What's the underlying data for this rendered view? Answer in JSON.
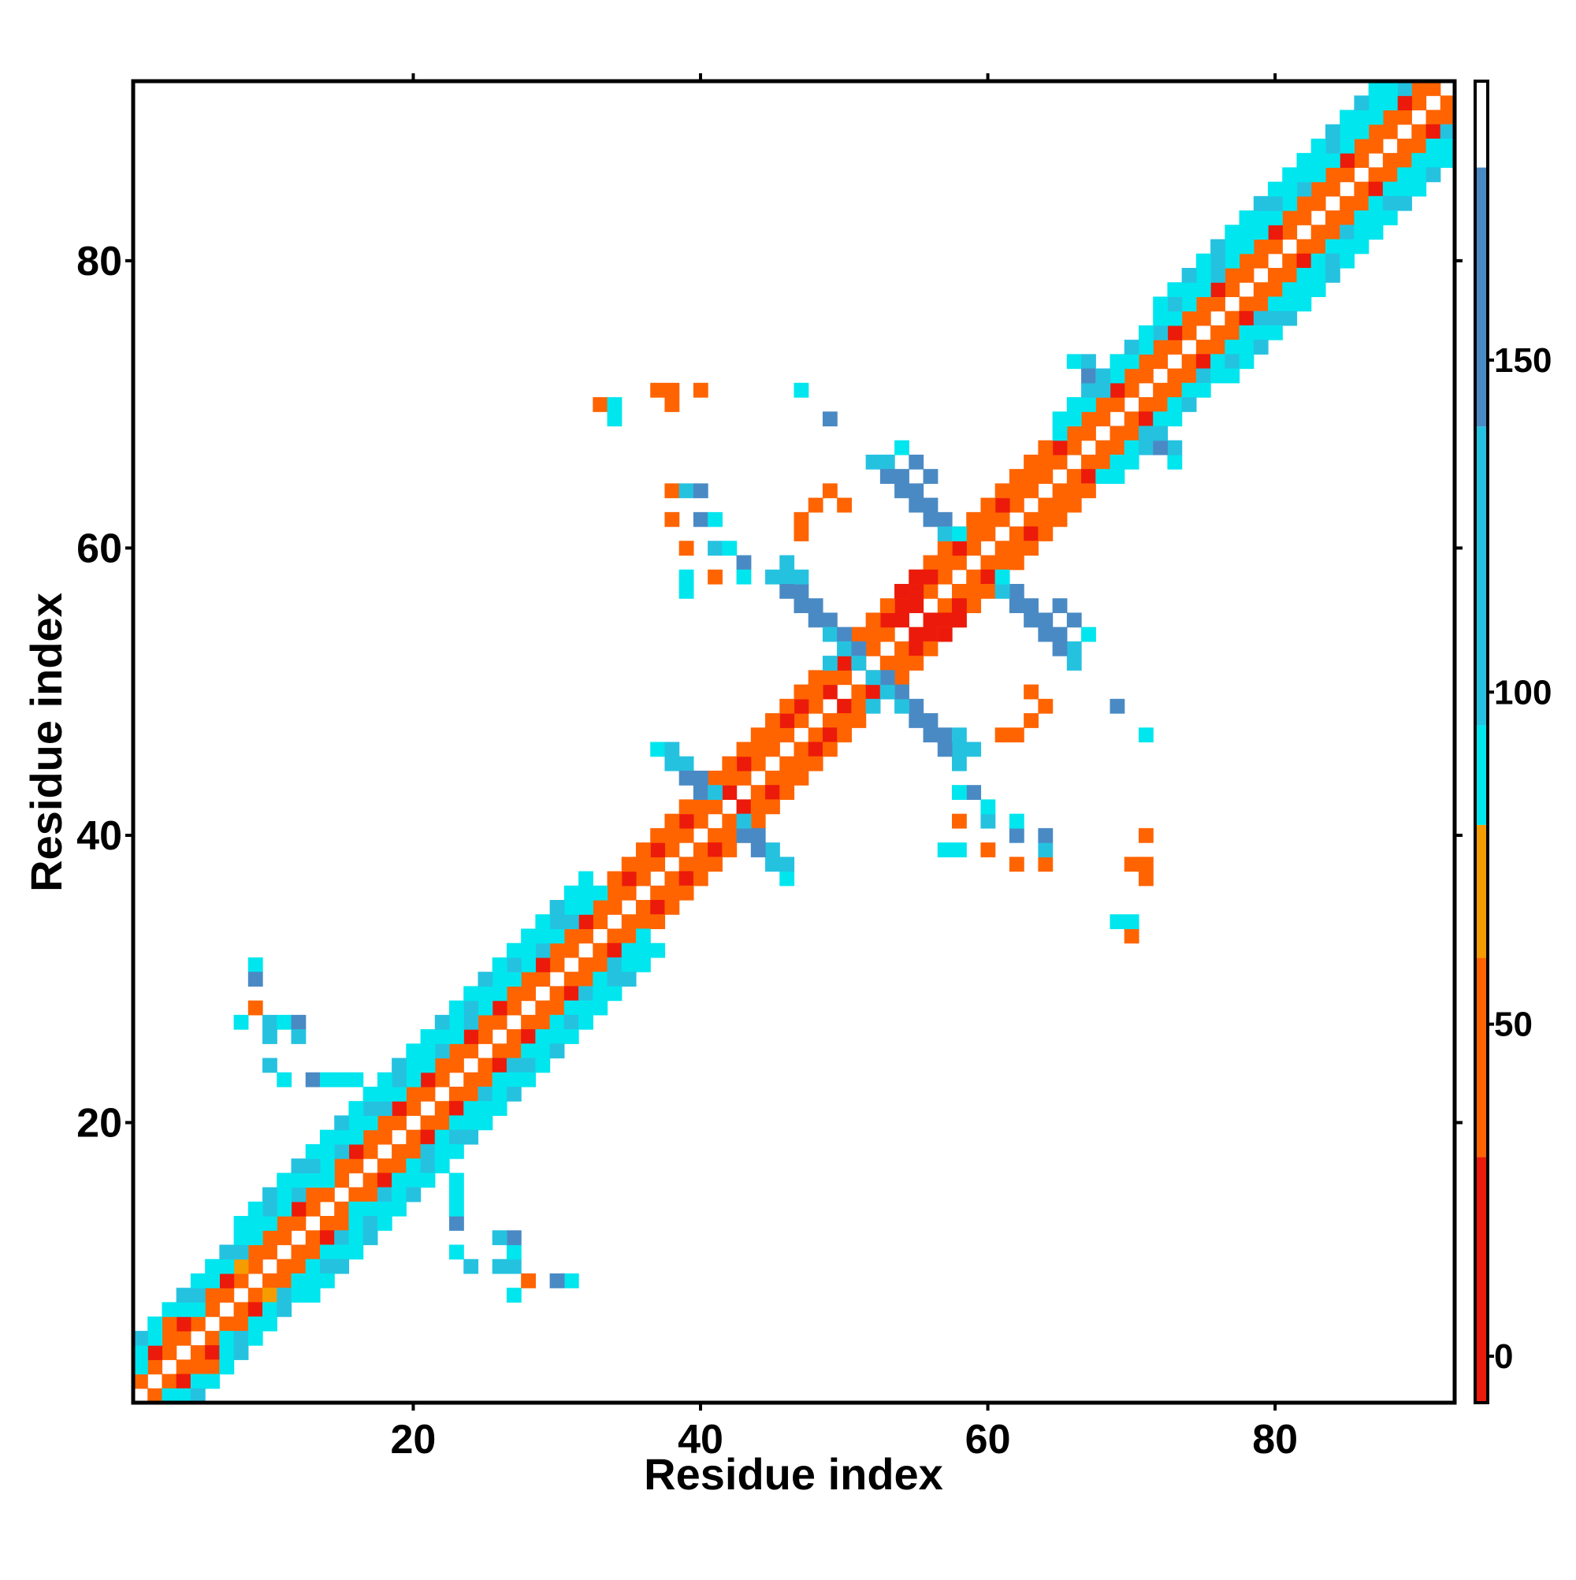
{
  "chart_data": {
    "type": "heatmap",
    "xlabel": "Residue index",
    "ylabel": "Residue index",
    "xlim": [
      0.5,
      92.5
    ],
    "ylim": [
      0.5,
      92.5
    ],
    "xticks": [
      20,
      40,
      60,
      80
    ],
    "yticks": [
      20,
      40,
      60,
      80
    ],
    "symmetric": true,
    "band": [
      {
        "offset": 1,
        "values": [
          40,
          38,
          42,
          36,
          60,
          40,
          38,
          45,
          40,
          36,
          42,
          40,
          55,
          38,
          40,
          42,
          36,
          40,
          44,
          38,
          40,
          42,
          38,
          40,
          36,
          42,
          40,
          38,
          44,
          40,
          38,
          42,
          36,
          40,
          38,
          42,
          40,
          44,
          38,
          40,
          42,
          20,
          38,
          40,
          42,
          40,
          38,
          44,
          20,
          40,
          42,
          38,
          36,
          15,
          20,
          40,
          42,
          38,
          40,
          36,
          44,
          40,
          38,
          42,
          40,
          36,
          40,
          42,
          38,
          44,
          40,
          36,
          42,
          40,
          38,
          40,
          44,
          38,
          42,
          40,
          36,
          40,
          42,
          38,
          40,
          44,
          38,
          40,
          42,
          38,
          40
        ]
      },
      {
        "offset": 2,
        "values": [
          90,
          20,
          40,
          25,
          85,
          40,
          30,
          70,
          42,
          38,
          45,
          30,
          40,
          92,
          38,
          25,
          40,
          42,
          30,
          40,
          25,
          40,
          38,
          30,
          42,
          25,
          40,
          38,
          30,
          42,
          40,
          25,
          38,
          42,
          30,
          40,
          20,
          38,
          25,
          40,
          15,
          40,
          20,
          38,
          42,
          25,
          15,
          40,
          38,
          20,
          42,
          38,
          10,
          12,
          15,
          40,
          42,
          20,
          38,
          40,
          25,
          42,
          38,
          40,
          30,
          42,
          38,
          40,
          25,
          42,
          38,
          40,
          30,
          42,
          38,
          25,
          40,
          42,
          38,
          30,
          40,
          42,
          38,
          40,
          25,
          42,
          38,
          40,
          30,
          42
        ]
      },
      {
        "offset": 3,
        "values": [
          95,
          88,
          40,
          92,
          100,
          90,
          95,
          110,
          92,
          88,
          95,
          100,
          90,
          92,
          110,
          95,
          88,
          100,
          92,
          90,
          95,
          110,
          92,
          100,
          90,
          88,
          95,
          92,
          100,
          90,
          110,
          95,
          92,
          40,
          42,
          38,
          45,
          40,
          42,
          38,
          40,
          42,
          45,
          38,
          40,
          42,
          40,
          38,
          120,
          110,
          42,
          40,
          38,
          45,
          40,
          42,
          38,
          40,
          44,
          40,
          42,
          38,
          40,
          45,
          92,
          95,
          88,
          100,
          92,
          90,
          95,
          110,
          92,
          88,
          95,
          100,
          92,
          90,
          95,
          88,
          92,
          100,
          95,
          90,
          92,
          88,
          95,
          90,
          100
        ]
      },
      {
        "offset": 4,
        "values": [
          100,
          92,
          95,
          110,
          92,
          88,
          100,
          95,
          92,
          110,
          95,
          90,
          100,
          92,
          88,
          95,
          110,
          92,
          100,
          95,
          90,
          92,
          95,
          100,
          88,
          92,
          110,
          95,
          92,
          100,
          95,
          92,
          null,
          null,
          null,
          null,
          null,
          null,
          null,
          null,
          null,
          null,
          null,
          null,
          null,
          null,
          null,
          null,
          null,
          null,
          null,
          null,
          null,
          null,
          null,
          null,
          null,
          null,
          null,
          null,
          null,
          null,
          null,
          null,
          92,
          95,
          100,
          88,
          92,
          110,
          95,
          92,
          100,
          90,
          95,
          110,
          92,
          88,
          95,
          100,
          92,
          95,
          90,
          100,
          92,
          95,
          88,
          92
        ]
      },
      {
        "offset": 5,
        "values": [
          null,
          null,
          null,
          null,
          null,
          null,
          null,
          92,
          95,
          100,
          92,
          110,
          95,
          92,
          100,
          95,
          88,
          92,
          100,
          95,
          92,
          110,
          95,
          92,
          100,
          95,
          92,
          90,
          95,
          100,
          92,
          95,
          null,
          null,
          null,
          null,
          null,
          null,
          null,
          null,
          null,
          null,
          null,
          null,
          null,
          null,
          null,
          null,
          null,
          null,
          null,
          null,
          null,
          null,
          null,
          null,
          null,
          null,
          null,
          null,
          null,
          null,
          null,
          null,
          null,
          null,
          null,
          null,
          null,
          null,
          null,
          92,
          95,
          100,
          92,
          110,
          95,
          92,
          100,
          95,
          92,
          88,
          95,
          100,
          92,
          110,
          95
        ]
      }
    ],
    "cells": {
      "x": [
        45,
        46,
        46,
        47,
        47,
        48,
        48,
        49,
        49,
        50,
        50,
        51,
        51,
        46,
        47,
        52,
        53,
        53,
        54,
        54,
        55,
        55,
        56,
        56,
        57,
        57,
        58,
        54,
        55,
        56,
        55,
        56,
        54,
        38,
        39,
        39,
        40,
        40,
        41,
        37,
        38,
        66,
        67,
        67,
        68,
        68,
        33,
        34,
        34,
        37,
        38,
        38,
        40,
        47,
        49,
        38,
        39,
        40,
        38,
        40,
        41,
        39,
        41,
        42,
        43,
        39,
        41,
        43,
        39,
        47,
        48,
        49,
        50,
        47,
        9,
        9,
        9,
        8,
        10,
        11,
        12,
        10,
        12,
        10,
        11,
        13,
        14,
        15,
        16
      ],
      "y": [
        58,
        58,
        57,
        57,
        56,
        56,
        55,
        55,
        54,
        54,
        53,
        53,
        52,
        59,
        58,
        66,
        66,
        65,
        65,
        64,
        64,
        63,
        63,
        62,
        62,
        61,
        61,
        67,
        66,
        65,
        58,
        58,
        57,
        45,
        45,
        44,
        44,
        43,
        43,
        46,
        46,
        73,
        73,
        72,
        72,
        71,
        70,
        70,
        69,
        71,
        71,
        70,
        71,
        71,
        69,
        64,
        64,
        64,
        62,
        62,
        62,
        60,
        60,
        60,
        59,
        58,
        58,
        58,
        57,
        62,
        63,
        64,
        63,
        61,
        31,
        30,
        28,
        27,
        27,
        27,
        27,
        26,
        26,
        24,
        23,
        23,
        23,
        23,
        23
      ],
      "values": [
        110,
        110,
        160,
        160,
        165,
        160,
        165,
        160,
        120,
        165,
        120,
        165,
        110,
        110,
        120,
        110,
        120,
        160,
        165,
        160,
        165,
        160,
        165,
        160,
        165,
        120,
        90,
        95,
        160,
        165,
        15,
        10,
        15,
        110,
        100,
        160,
        165,
        160,
        120,
        95,
        110,
        95,
        100,
        160,
        110,
        120,
        50,
        90,
        90,
        40,
        40,
        40,
        60,
        90,
        160,
        60,
        110,
        160,
        60,
        160,
        90,
        40,
        110,
        95,
        160,
        95,
        60,
        90,
        95,
        50,
        50,
        60,
        40,
        40,
        95,
        160,
        60,
        95,
        120,
        95,
        160,
        110,
        120,
        100,
        95,
        160,
        95,
        95,
        95
      ]
    },
    "colorscale": [
      {
        "max": 30,
        "color": "#ec1a0a"
      },
      {
        "max": 60,
        "color": "#ff6400"
      },
      {
        "max": 80,
        "color": "#f59c00"
      },
      {
        "max": 95,
        "color": "#00e6ee"
      },
      {
        "max": 140,
        "color": "#25c2e0"
      },
      {
        "max": 179,
        "color": "#4a8ac4"
      },
      {
        "max": 192,
        "color": "#ffffff"
      }
    ],
    "colorbar": {
      "clim": [
        -7,
        192
      ],
      "ticks": [
        0,
        50,
        100,
        150
      ]
    }
  }
}
